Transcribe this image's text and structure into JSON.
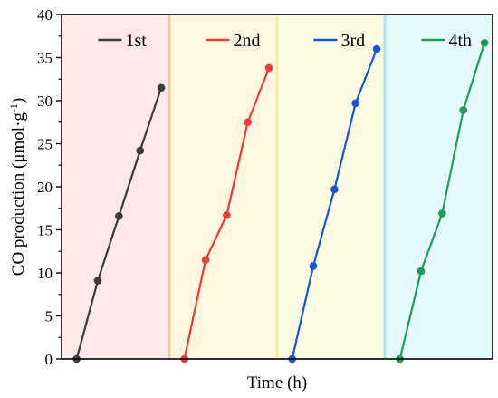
{
  "chart_data": {
    "type": "line",
    "xlabel": "Time (h)",
    "ylabel_main": "CO production (μmol·g",
    "ylabel_sup": "-1",
    "ylabel_close": ")",
    "ylim": [
      0,
      40
    ],
    "yticks": [
      "0",
      "5",
      "10",
      "15",
      "20",
      "25",
      "30",
      "35",
      "40"
    ],
    "x_ticks_shown": false,
    "x_points": [
      0,
      1,
      2,
      3,
      4
    ],
    "legend_position": "top",
    "cycle_band_colors": [
      "#fde8ea",
      "#fff6e0",
      "#fbfbe2",
      "#e6fafc"
    ],
    "cycle_separator_colors": [
      "#f5c7a0",
      "#eef0a0",
      "#a8e6ef"
    ],
    "series": [
      {
        "name": "1st",
        "color": "#3c3c3c",
        "values": [
          0,
          9.1,
          16.6,
          24.2,
          31.5
        ]
      },
      {
        "name": "2nd",
        "color": "#ec3b3b",
        "values": [
          0,
          11.5,
          16.7,
          27.5,
          33.8
        ]
      },
      {
        "name": "3rd",
        "color": "#1456d6",
        "values": [
          0,
          10.8,
          19.7,
          29.7,
          36.0
        ]
      },
      {
        "name": "4th",
        "color": "#1e9e5a",
        "values": [
          0,
          10.2,
          16.9,
          28.9,
          36.7
        ]
      }
    ]
  }
}
